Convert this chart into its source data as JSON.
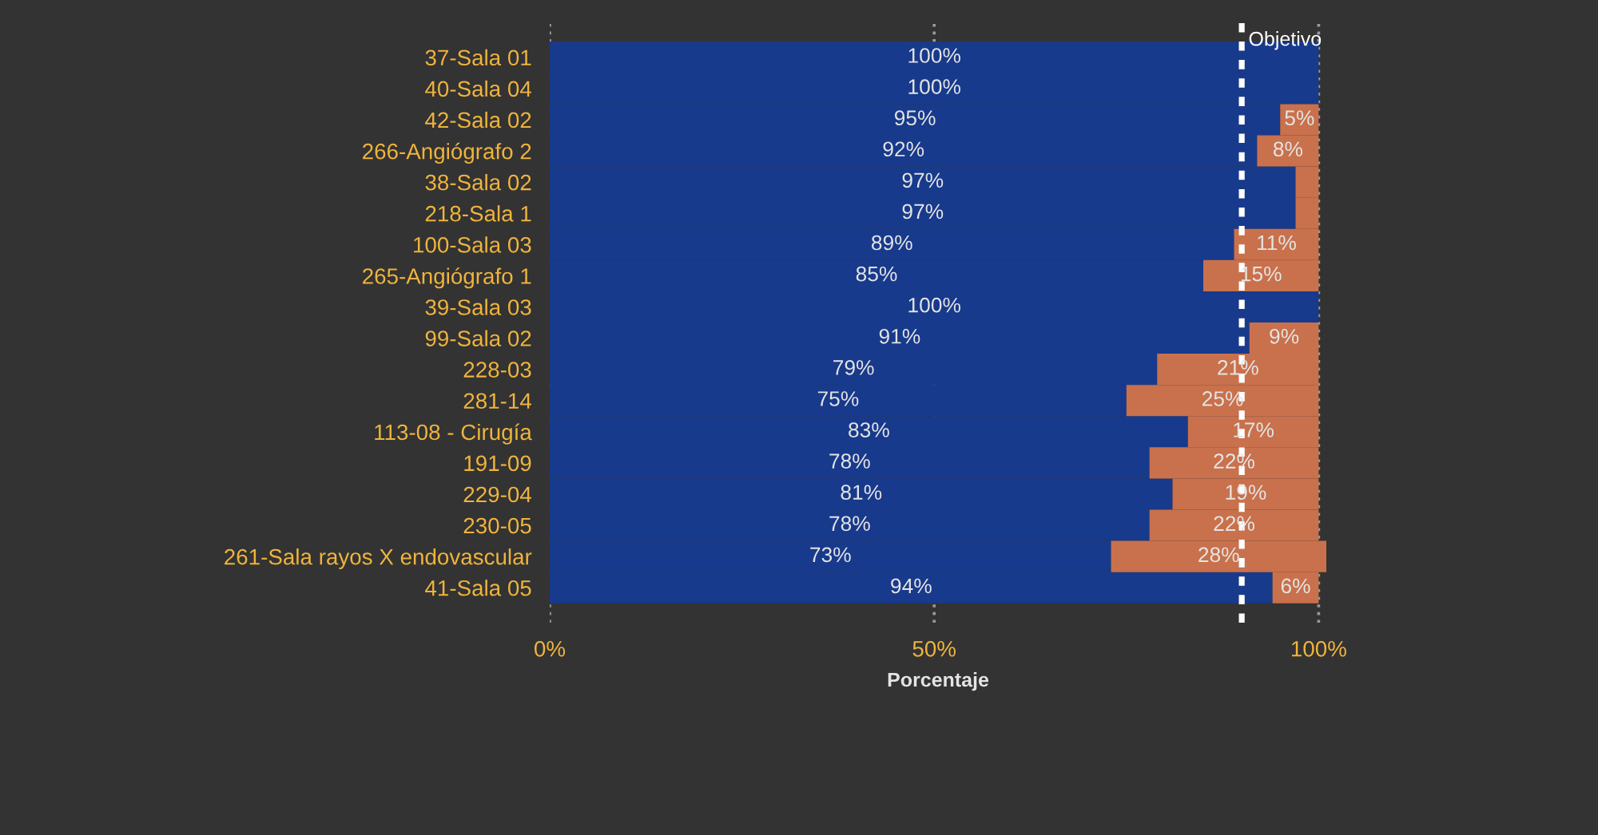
{
  "chart_data": {
    "type": "bar",
    "orientation": "horizontal",
    "stacked": true,
    "categories": [
      "37-Sala 01",
      "40-Sala 04",
      "42-Sala 02",
      "266-Angiógrafo 2",
      "38-Sala 02",
      "218-Sala 1",
      "100-Sala 03",
      "265-Angiógrafo 1",
      "39-Sala 03",
      "99-Sala 02",
      "228-03",
      "281-14",
      "113-08 - Cirugía",
      "191-09",
      "229-04",
      "230-05",
      "261-Sala rayos X endovascular",
      "41-Sala 05"
    ],
    "series": [
      {
        "color": "#183a8c",
        "values": [
          100,
          100,
          95,
          92,
          97,
          97,
          89,
          85,
          100,
          91,
          79,
          75,
          83,
          78,
          81,
          78,
          73,
          94
        ],
        "value_labels": [
          "100%",
          "100%",
          "95%",
          "92%",
          "97%",
          "97%",
          "89%",
          "85%",
          "100%",
          "91%",
          "79%",
          "75%",
          "83%",
          "78%",
          "81%",
          "78%",
          "73%",
          "94%"
        ]
      },
      {
        "color": "#c9714c",
        "values": [
          null,
          null,
          5,
          8,
          3,
          3,
          11,
          15,
          null,
          9,
          21,
          25,
          17,
          22,
          19,
          22,
          28,
          6
        ],
        "value_labels": [
          null,
          null,
          "5%",
          "8%",
          null,
          null,
          "11%",
          "15%",
          null,
          "9%",
          "21%",
          "25%",
          "17%",
          "22%",
          "19%",
          "22%",
          "28%",
          "6%"
        ]
      }
    ],
    "xlim": [
      0,
      101
    ],
    "xticks": [
      {
        "value": 0,
        "label": "0%"
      },
      {
        "value": 50,
        "label": "50%"
      },
      {
        "value": 100,
        "label": "100%"
      }
    ],
    "xlabel": "Porcentaje",
    "grid": "x",
    "ref_lines": [
      {
        "axis": "x",
        "value": 90,
        "label": "Objetivo",
        "color": "#ffffff",
        "line_style": "dashed"
      }
    ]
  }
}
